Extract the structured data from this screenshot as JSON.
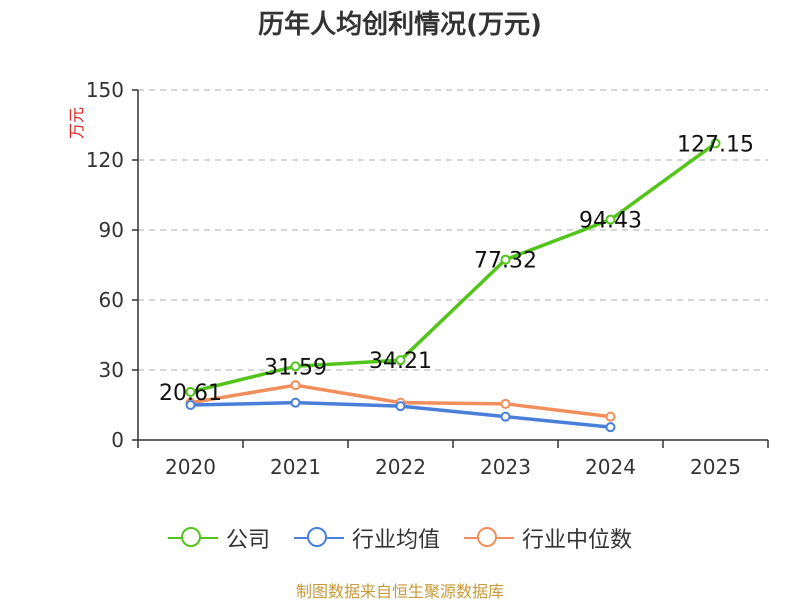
{
  "title": "历年人均创利情况(万元)",
  "source_note": "制图数据来自恒生聚源数据库",
  "chart_data": {
    "type": "line",
    "title": "历年人均创利情况(万元)",
    "xlabel": "",
    "ylabel": "万元",
    "categories": [
      "2020",
      "2021",
      "2022",
      "2023",
      "2024",
      "2025"
    ],
    "ylim": [
      0,
      150
    ],
    "yticks": [
      0,
      30,
      60,
      90,
      120,
      150
    ],
    "grid": true,
    "legend_position": "bottom",
    "series": [
      {
        "name": "公司",
        "color": "#52c41a",
        "values": [
          20.61,
          31.59,
          34.21,
          77.32,
          94.43,
          127.15
        ],
        "labels": [
          "20.61",
          "31.59",
          "34.21",
          "77.32",
          "94.43",
          "127.15"
        ]
      },
      {
        "name": "行业均值",
        "color": "#4a7fd9",
        "values": [
          15,
          16,
          14.5,
          10,
          5.5,
          null
        ]
      },
      {
        "name": "行业中位数",
        "color": "#f28e5b",
        "values": [
          16,
          23.5,
          16,
          15.5,
          10,
          null
        ]
      }
    ]
  }
}
